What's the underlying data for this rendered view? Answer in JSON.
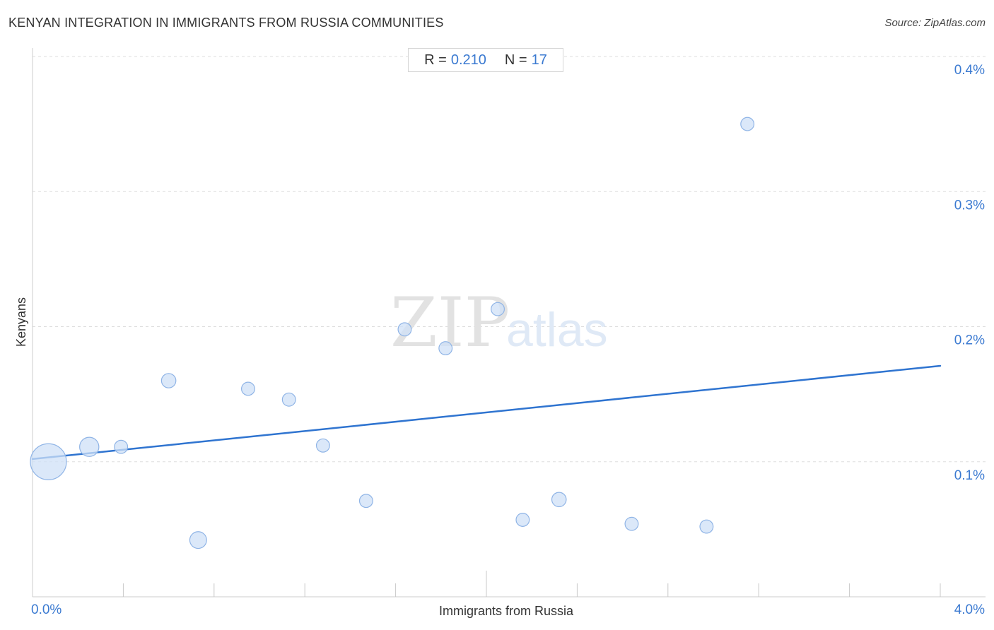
{
  "header": {
    "title": "KENYAN INTEGRATION IN IMMIGRANTS FROM RUSSIA COMMUNITIES",
    "source": "Source: ZipAtlas.com"
  },
  "stats": {
    "r_label": "R =",
    "r_value": "0.210",
    "n_label": "N =",
    "n_value": "17"
  },
  "watermark": {
    "zip": "ZIP",
    "atlas": "atlas"
  },
  "colors": {
    "accent": "#3b7ad1",
    "point_fill": "#cfe0f7",
    "point_stroke": "#8fb4e6",
    "trend_line": "#2f74d0",
    "grid": "#dddddd"
  },
  "chart_data": {
    "type": "scatter",
    "title": "KENYAN INTEGRATION IN IMMIGRANTS FROM RUSSIA COMMUNITIES",
    "xlabel": "Immigrants from Russia",
    "ylabel": "Kenyans",
    "xlim": [
      0,
      4
    ],
    "ylim": [
      0,
      0.4
    ],
    "x_tick_labels": [
      "0.0%",
      "4.0%"
    ],
    "y_ticks": [
      0.1,
      0.2,
      0.3,
      0.4
    ],
    "y_tick_labels": [
      "0.1%",
      "0.2%",
      "0.3%",
      "0.4%"
    ],
    "grid": true,
    "legend": "none",
    "points": [
      {
        "x": 0.07,
        "y": 0.1,
        "weight": 3
      },
      {
        "x": 0.25,
        "y": 0.111,
        "weight": 1.6
      },
      {
        "x": 0.39,
        "y": 0.111,
        "weight": 1.1
      },
      {
        "x": 0.6,
        "y": 0.16,
        "weight": 1.2
      },
      {
        "x": 0.73,
        "y": 0.042,
        "weight": 1.4
      },
      {
        "x": 0.95,
        "y": 0.154,
        "weight": 1.1
      },
      {
        "x": 1.13,
        "y": 0.146,
        "weight": 1.1
      },
      {
        "x": 1.28,
        "y": 0.112,
        "weight": 1.1
      },
      {
        "x": 1.47,
        "y": 0.071,
        "weight": 1.1
      },
      {
        "x": 1.64,
        "y": 0.198,
        "weight": 1.1
      },
      {
        "x": 1.82,
        "y": 0.184,
        "weight": 1.1
      },
      {
        "x": 2.05,
        "y": 0.213,
        "weight": 1.1
      },
      {
        "x": 2.16,
        "y": 0.057,
        "weight": 1.1
      },
      {
        "x": 2.32,
        "y": 0.072,
        "weight": 1.2
      },
      {
        "x": 2.64,
        "y": 0.054,
        "weight": 1.1
      },
      {
        "x": 2.97,
        "y": 0.052,
        "weight": 1.1
      },
      {
        "x": 3.15,
        "y": 0.35,
        "weight": 1.1
      }
    ],
    "trend_line": {
      "x": [
        0,
        4
      ],
      "y": [
        0.102,
        0.171
      ]
    }
  }
}
